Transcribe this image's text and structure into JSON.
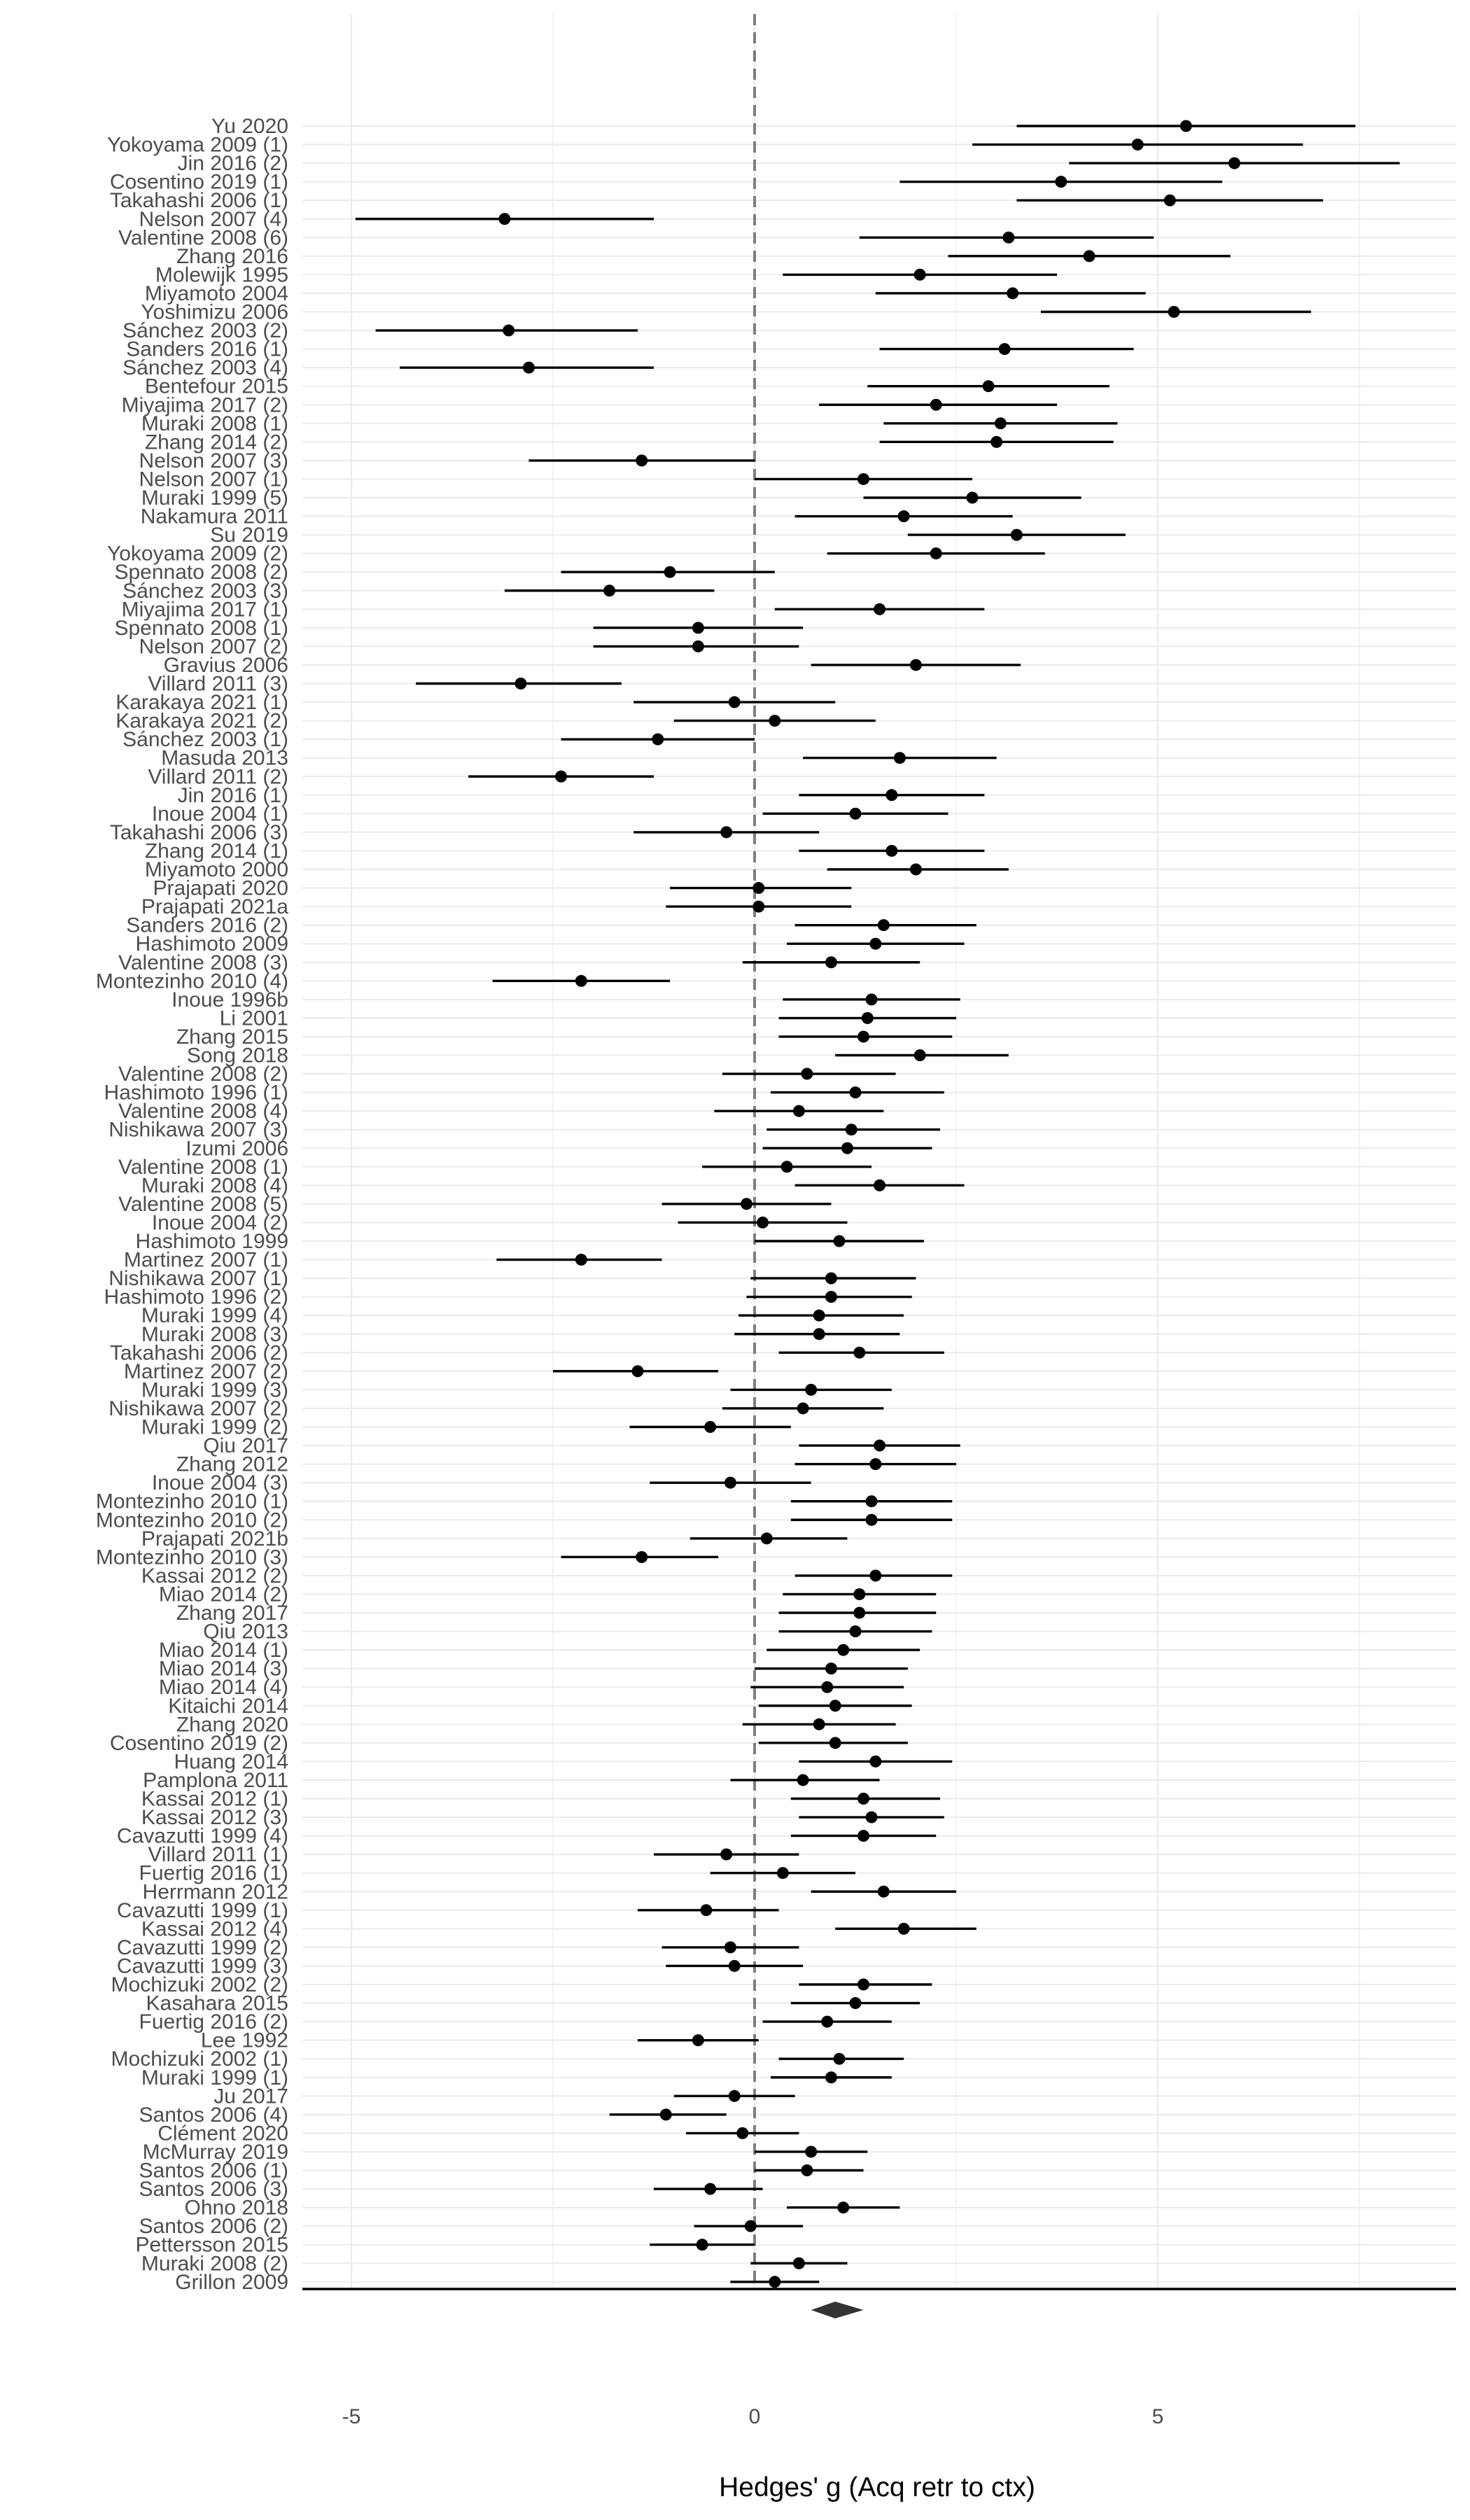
{
  "chart_data": {
    "type": "forest",
    "title": "",
    "xlabel": "Hedges' g (Acq retr to ctx)",
    "ylabel": "",
    "xlim": [
      -6.2,
      8.5
    ],
    "xticks": [
      -5,
      0,
      5
    ],
    "xtick_labels": [
      "-5",
      "0",
      "5"
    ],
    "reference_line": 0,
    "grid": true,
    "summary": {
      "estimate": 1.0,
      "ci_lower": 0.7,
      "ci_upper": 1.35
    },
    "colors": {
      "point": "#000000",
      "reference": "#7f7f7f",
      "grid": "#ebebeb",
      "summary": "#333333",
      "text": "#4d4d4d"
    },
    "studies": [
      {
        "label": "Yu 2020",
        "estimate": 5.35,
        "lower": 3.25,
        "upper": 7.45
      },
      {
        "label": "Yokoyama 2009 (1)",
        "estimate": 4.75,
        "lower": 2.7,
        "upper": 6.8
      },
      {
        "label": "Jin 2016 (2)",
        "estimate": 5.95,
        "lower": 3.9,
        "upper": 8.0
      },
      {
        "label": "Cosentino 2019 (1)",
        "estimate": 3.8,
        "lower": 1.8,
        "upper": 5.8
      },
      {
        "label": "Takahashi 2006 (1)",
        "estimate": 5.15,
        "lower": 3.25,
        "upper": 7.05
      },
      {
        "label": "Nelson 2007 (4)",
        "estimate": -3.1,
        "lower": -4.95,
        "upper": -1.25
      },
      {
        "label": "Valentine 2008 (6)",
        "estimate": 3.15,
        "lower": 1.3,
        "upper": 4.95
      },
      {
        "label": "Zhang 2016",
        "estimate": 4.15,
        "lower": 2.4,
        "upper": 5.9
      },
      {
        "label": "Molewijk 1995",
        "estimate": 2.05,
        "lower": 0.35,
        "upper": 3.75
      },
      {
        "label": "Miyamoto 2004",
        "estimate": 3.2,
        "lower": 1.5,
        "upper": 4.85
      },
      {
        "label": "Yoshimizu 2006",
        "estimate": 5.2,
        "lower": 3.55,
        "upper": 6.9
      },
      {
        "label": "Sánchez 2003 (2)",
        "estimate": -3.05,
        "lower": -4.7,
        "upper": -1.45
      },
      {
        "label": "Sanders 2016 (1)",
        "estimate": 3.1,
        "lower": 1.55,
        "upper": 4.7
      },
      {
        "label": "Sánchez 2003 (4)",
        "estimate": -2.8,
        "lower": -4.4,
        "upper": -1.25
      },
      {
        "label": "Bentefour 2015",
        "estimate": 2.9,
        "lower": 1.4,
        "upper": 4.4
      },
      {
        "label": "Miyajima 2017 (2)",
        "estimate": 2.25,
        "lower": 0.8,
        "upper": 3.75
      },
      {
        "label": "Muraki 2008 (1)",
        "estimate": 3.05,
        "lower": 1.6,
        "upper": 4.5
      },
      {
        "label": "Zhang 2014 (2)",
        "estimate": 3.0,
        "lower": 1.55,
        "upper": 4.45
      },
      {
        "label": "Nelson 2007 (3)",
        "estimate": -1.4,
        "lower": -2.8,
        "upper": 0.0
      },
      {
        "label": "Nelson 2007 (1)",
        "estimate": 1.35,
        "lower": 0.0,
        "upper": 2.7
      },
      {
        "label": "Muraki 1999 (5)",
        "estimate": 2.7,
        "lower": 1.35,
        "upper": 4.05
      },
      {
        "label": "Nakamura 2011",
        "estimate": 1.85,
        "lower": 0.5,
        "upper": 3.2
      },
      {
        "label": "Su 2019",
        "estimate": 3.25,
        "lower": 1.9,
        "upper": 4.6
      },
      {
        "label": "Yokoyama 2009 (2)",
        "estimate": 2.25,
        "lower": 0.9,
        "upper": 3.6
      },
      {
        "label": "Spennato 2008 (2)",
        "estimate": -1.05,
        "lower": -2.4,
        "upper": 0.25
      },
      {
        "label": "Sánchez 2003 (3)",
        "estimate": -1.8,
        "lower": -3.1,
        "upper": -0.5
      },
      {
        "label": "Miyajima 2017 (1)",
        "estimate": 1.55,
        "lower": 0.25,
        "upper": 2.85
      },
      {
        "label": "Spennato 2008 (1)",
        "estimate": -0.7,
        "lower": -2.0,
        "upper": 0.6
      },
      {
        "label": "Nelson 2007 (2)",
        "estimate": -0.7,
        "lower": -2.0,
        "upper": 0.55
      },
      {
        "label": "Gravius 2006",
        "estimate": 2.0,
        "lower": 0.7,
        "upper": 3.3
      },
      {
        "label": "Villard 2011 (3)",
        "estimate": -2.9,
        "lower": -4.2,
        "upper": -1.65
      },
      {
        "label": "Karakaya 2021 (1)",
        "estimate": -0.25,
        "lower": -1.5,
        "upper": 1.0
      },
      {
        "label": "Karakaya 2021 (2)",
        "estimate": 0.25,
        "lower": -1.0,
        "upper": 1.5
      },
      {
        "label": "Sánchez 2003 (1)",
        "estimate": -1.2,
        "lower": -2.4,
        "upper": 0.0
      },
      {
        "label": "Masuda 2013",
        "estimate": 1.8,
        "lower": 0.6,
        "upper": 3.0
      },
      {
        "label": "Villard 2011 (2)",
        "estimate": -2.4,
        "lower": -3.55,
        "upper": -1.25
      },
      {
        "label": "Jin 2016 (1)",
        "estimate": 1.7,
        "lower": 0.55,
        "upper": 2.85
      },
      {
        "label": "Inoue 2004 (1)",
        "estimate": 1.25,
        "lower": 0.1,
        "upper": 2.4
      },
      {
        "label": "Takahashi 2006 (3)",
        "estimate": -0.35,
        "lower": -1.5,
        "upper": 0.8
      },
      {
        "label": "Zhang 2014 (1)",
        "estimate": 1.7,
        "lower": 0.55,
        "upper": 2.85
      },
      {
        "label": "Miyamoto 2000",
        "estimate": 2.0,
        "lower": 0.9,
        "upper": 3.15
      },
      {
        "label": "Prajapati 2020",
        "estimate": 0.05,
        "lower": -1.05,
        "upper": 1.2
      },
      {
        "label": "Prajapati 2021a",
        "estimate": 0.05,
        "lower": -1.1,
        "upper": 1.2
      },
      {
        "label": "Sanders 2016 (2)",
        "estimate": 1.6,
        "lower": 0.5,
        "upper": 2.75
      },
      {
        "label": "Hashimoto 2009",
        "estimate": 1.5,
        "lower": 0.4,
        "upper": 2.6
      },
      {
        "label": "Valentine 2008 (3)",
        "estimate": 0.95,
        "lower": -0.15,
        "upper": 2.05
      },
      {
        "label": "Montezinho 2010 (4)",
        "estimate": -2.15,
        "lower": -3.25,
        "upper": -1.05
      },
      {
        "label": "Inoue 1996b",
        "estimate": 1.45,
        "lower": 0.35,
        "upper": 2.55
      },
      {
        "label": "Li 2001",
        "estimate": 1.4,
        "lower": 0.3,
        "upper": 2.5
      },
      {
        "label": "Zhang 2015",
        "estimate": 1.35,
        "lower": 0.3,
        "upper": 2.45
      },
      {
        "label": "Song 2018",
        "estimate": 2.05,
        "lower": 1.0,
        "upper": 3.15
      },
      {
        "label": "Valentine 2008 (2)",
        "estimate": 0.65,
        "lower": -0.4,
        "upper": 1.75
      },
      {
        "label": "Hashimoto 1996 (1)",
        "estimate": 1.25,
        "lower": 0.2,
        "upper": 2.35
      },
      {
        "label": "Valentine 2008 (4)",
        "estimate": 0.55,
        "lower": -0.5,
        "upper": 1.6
      },
      {
        "label": "Nishikawa 2007 (3)",
        "estimate": 1.2,
        "lower": 0.15,
        "upper": 2.3
      },
      {
        "label": "Izumi 2006",
        "estimate": 1.15,
        "lower": 0.1,
        "upper": 2.2
      },
      {
        "label": "Valentine 2008 (1)",
        "estimate": 0.4,
        "lower": -0.65,
        "upper": 1.45
      },
      {
        "label": "Muraki 2008 (4)",
        "estimate": 1.55,
        "lower": 0.5,
        "upper": 2.6
      },
      {
        "label": "Valentine 2008 (5)",
        "estimate": -0.1,
        "lower": -1.15,
        "upper": 0.95
      },
      {
        "label": "Inoue 2004 (2)",
        "estimate": 0.1,
        "lower": -0.95,
        "upper": 1.15
      },
      {
        "label": "Hashimoto 1999",
        "estimate": 1.05,
        "lower": 0.0,
        "upper": 2.1
      },
      {
        "label": "Martinez 2007 (1)",
        "estimate": -2.15,
        "lower": -3.2,
        "upper": -1.15
      },
      {
        "label": "Nishikawa 2007 (1)",
        "estimate": 0.95,
        "lower": -0.05,
        "upper": 2.0
      },
      {
        "label": "Hashimoto 1996 (2)",
        "estimate": 0.95,
        "lower": -0.1,
        "upper": 1.95
      },
      {
        "label": "Muraki 1999 (4)",
        "estimate": 0.8,
        "lower": -0.2,
        "upper": 1.85
      },
      {
        "label": "Muraki 2008 (3)",
        "estimate": 0.8,
        "lower": -0.25,
        "upper": 1.8
      },
      {
        "label": "Takahashi 2006 (2)",
        "estimate": 1.3,
        "lower": 0.3,
        "upper": 2.35
      },
      {
        "label": "Martinez 2007 (2)",
        "estimate": -1.45,
        "lower": -2.5,
        "upper": -0.45
      },
      {
        "label": "Muraki 1999 (3)",
        "estimate": 0.7,
        "lower": -0.3,
        "upper": 1.7
      },
      {
        "label": "Nishikawa 2007 (2)",
        "estimate": 0.6,
        "lower": -0.4,
        "upper": 1.6
      },
      {
        "label": "Muraki 1999 (2)",
        "estimate": -0.55,
        "lower": -1.55,
        "upper": 0.45
      },
      {
        "label": "Qiu 2017",
        "estimate": 1.55,
        "lower": 0.55,
        "upper": 2.55
      },
      {
        "label": "Zhang 2012",
        "estimate": 1.5,
        "lower": 0.5,
        "upper": 2.5
      },
      {
        "label": "Inoue 2004 (3)",
        "estimate": -0.3,
        "lower": -1.3,
        "upper": 0.7
      },
      {
        "label": "Montezinho 2010 (1)",
        "estimate": 1.45,
        "lower": 0.45,
        "upper": 2.45
      },
      {
        "label": "Montezinho 2010 (2)",
        "estimate": 1.45,
        "lower": 0.45,
        "upper": 2.45
      },
      {
        "label": "Prajapati 2021b",
        "estimate": 0.15,
        "lower": -0.8,
        "upper": 1.15
      },
      {
        "label": "Montezinho 2010 (3)",
        "estimate": -1.4,
        "lower": -2.4,
        "upper": -0.45
      },
      {
        "label": "Kassai 2012 (2)",
        "estimate": 1.5,
        "lower": 0.5,
        "upper": 2.45
      },
      {
        "label": "Miao 2014 (2)",
        "estimate": 1.3,
        "lower": 0.35,
        "upper": 2.25
      },
      {
        "label": "Zhang 2017",
        "estimate": 1.3,
        "lower": 0.3,
        "upper": 2.25
      },
      {
        "label": "Qiu 2013",
        "estimate": 1.25,
        "lower": 0.3,
        "upper": 2.2
      },
      {
        "label": "Miao 2014 (1)",
        "estimate": 1.1,
        "lower": 0.15,
        "upper": 2.05
      },
      {
        "label": "Miao 2014 (3)",
        "estimate": 0.95,
        "lower": 0.0,
        "upper": 1.9
      },
      {
        "label": "Miao 2014 (4)",
        "estimate": 0.9,
        "lower": -0.05,
        "upper": 1.85
      },
      {
        "label": "Kitaichi 2014",
        "estimate": 1.0,
        "lower": 0.05,
        "upper": 1.95
      },
      {
        "label": "Zhang 2020",
        "estimate": 0.8,
        "lower": -0.15,
        "upper": 1.75
      },
      {
        "label": "Cosentino 2019 (2)",
        "estimate": 1.0,
        "lower": 0.05,
        "upper": 1.9
      },
      {
        "label": "Huang 2014",
        "estimate": 1.5,
        "lower": 0.55,
        "upper": 2.45
      },
      {
        "label": "Pamplona 2011",
        "estimate": 0.6,
        "lower": -0.3,
        "upper": 1.55
      },
      {
        "label": "Kassai 2012 (1)",
        "estimate": 1.35,
        "lower": 0.45,
        "upper": 2.3
      },
      {
        "label": "Kassai 2012 (3)",
        "estimate": 1.45,
        "lower": 0.55,
        "upper": 2.35
      },
      {
        "label": "Cavazutti 1999 (4)",
        "estimate": 1.35,
        "lower": 0.45,
        "upper": 2.25
      },
      {
        "label": "Villard 2011 (1)",
        "estimate": -0.35,
        "lower": -1.25,
        "upper": 0.55
      },
      {
        "label": "Fuertig 2016 (1)",
        "estimate": 0.35,
        "lower": -0.55,
        "upper": 1.25
      },
      {
        "label": "Herrmann 2012",
        "estimate": 1.6,
        "lower": 0.7,
        "upper": 2.5
      },
      {
        "label": "Cavazutti 1999 (1)",
        "estimate": -0.6,
        "lower": -1.45,
        "upper": 0.3
      },
      {
        "label": "Kassai 2012 (4)",
        "estimate": 1.85,
        "lower": 1.0,
        "upper": 2.75
      },
      {
        "label": "Cavazutti 1999 (2)",
        "estimate": -0.3,
        "lower": -1.15,
        "upper": 0.55
      },
      {
        "label": "Cavazutti 1999 (3)",
        "estimate": -0.25,
        "lower": -1.1,
        "upper": 0.6
      },
      {
        "label": "Mochizuki 2002 (2)",
        "estimate": 1.35,
        "lower": 0.55,
        "upper": 2.2
      },
      {
        "label": "Kasahara 2015",
        "estimate": 1.25,
        "lower": 0.45,
        "upper": 2.05
      },
      {
        "label": "Fuertig 2016 (2)",
        "estimate": 0.9,
        "lower": 0.1,
        "upper": 1.7
      },
      {
        "label": "Lee 1992",
        "estimate": -0.7,
        "lower": -1.45,
        "upper": 0.05
      },
      {
        "label": "Mochizuki 2002 (1)",
        "estimate": 1.05,
        "lower": 0.3,
        "upper": 1.85
      },
      {
        "label": "Muraki 1999 (1)",
        "estimate": 0.95,
        "lower": 0.2,
        "upper": 1.7
      },
      {
        "label": "Ju 2017",
        "estimate": -0.25,
        "lower": -1.0,
        "upper": 0.5
      },
      {
        "label": "Santos 2006 (4)",
        "estimate": -1.1,
        "lower": -1.8,
        "upper": -0.35
      },
      {
        "label": "Clément 2020",
        "estimate": -0.15,
        "lower": -0.85,
        "upper": 0.55
      },
      {
        "label": "McMurray 2019",
        "estimate": 0.7,
        "lower": 0.0,
        "upper": 1.4
      },
      {
        "label": "Santos 2006 (1)",
        "estimate": 0.65,
        "lower": 0.0,
        "upper": 1.35
      },
      {
        "label": "Santos 2006 (3)",
        "estimate": -0.55,
        "lower": -1.25,
        "upper": 0.1
      },
      {
        "label": "Ohno 2018",
        "estimate": 1.1,
        "lower": 0.4,
        "upper": 1.8
      },
      {
        "label": "Santos 2006 (2)",
        "estimate": -0.05,
        "lower": -0.75,
        "upper": 0.6
      },
      {
        "label": "Pettersson 2015",
        "estimate": -0.65,
        "lower": -1.3,
        "upper": 0.0
      },
      {
        "label": "Muraki 2008 (2)",
        "estimate": 0.55,
        "lower": -0.05,
        "upper": 1.15
      },
      {
        "label": "Grillon 2009",
        "estimate": 0.25,
        "lower": -0.3,
        "upper": 0.8
      }
    ]
  }
}
